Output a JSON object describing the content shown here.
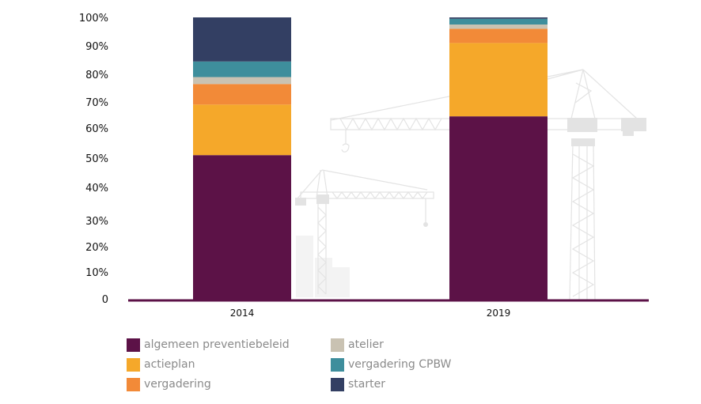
{
  "chart_data": {
    "type": "bar",
    "stacked": true,
    "title": "",
    "xlabel": "",
    "ylabel": "",
    "categories": [
      "2014",
      "2019"
    ],
    "yticks": [
      "100%",
      "90%",
      "80%",
      "70%",
      "60%",
      "50%",
      "40%",
      "30%",
      "20%",
      "10%",
      "0"
    ],
    "ytick_values": [
      100,
      90,
      80,
      70,
      60,
      50,
      40,
      30,
      20,
      10,
      0
    ],
    "ylim": [
      0,
      100
    ],
    "grid": false,
    "legend_position": "bottom",
    "series": [
      {
        "name": "algemeen preventiebeleid",
        "color": "#5c1247",
        "values": [
          51,
          64.5
        ]
      },
      {
        "name": "actieplan",
        "color": "#f5a82a",
        "values": [
          18,
          26.5
        ]
      },
      {
        "name": "vergadering",
        "color": "#f28a38",
        "values": [
          7.5,
          5
        ]
      },
      {
        "name": "atelier",
        "color": "#c9c2b2",
        "values": [
          2.5,
          1.5
        ]
      },
      {
        "name": "vergadering CPBW",
        "color": "#3e8e9c",
        "values": [
          5.5,
          2
        ]
      },
      {
        "name": "starter",
        "color": "#333f63",
        "values": [
          15.5,
          0.5
        ]
      }
    ],
    "axis_color": "#5c1247",
    "background_decoration": "construction cranes illustration"
  },
  "legend": {
    "items": [
      {
        "label": "algemeen preventiebeleid",
        "color": "#5c1247"
      },
      {
        "label": "actieplan",
        "color": "#f5a82a"
      },
      {
        "label": "vergadering",
        "color": "#f28a38"
      },
      {
        "label": "atelier",
        "color": "#c9c2b2"
      },
      {
        "label": "vergadering CPBW",
        "color": "#3e8e9c"
      },
      {
        "label": "starter",
        "color": "#333f63"
      }
    ]
  }
}
